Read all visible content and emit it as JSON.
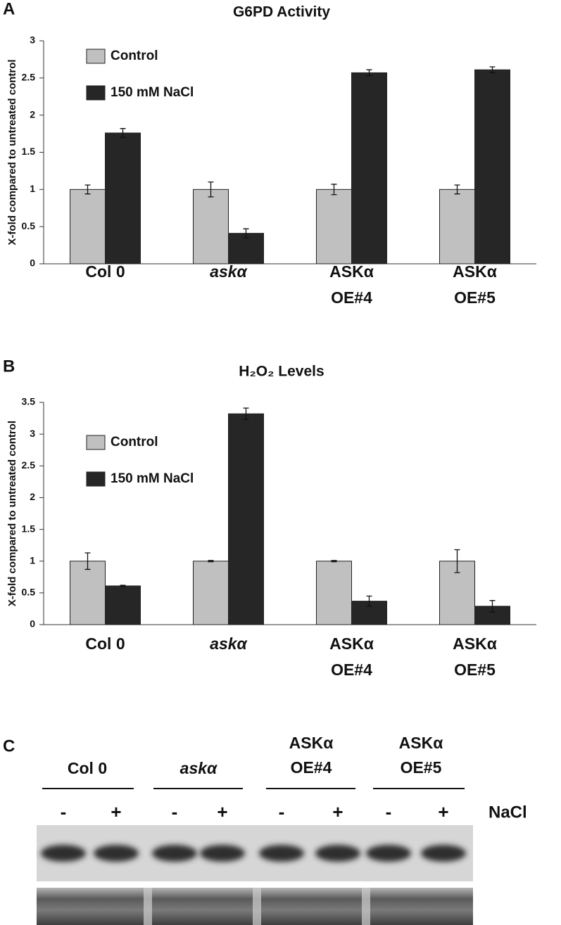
{
  "chart_data": [
    {
      "type": "bar",
      "panel_label": "A",
      "title": "G6PD Activity",
      "ylabel": "X-fold compared to untreated control",
      "categories": [
        "Col 0",
        "askα",
        "ASKα\nOE#4",
        "ASKα\nOE#5"
      ],
      "series": [
        {
          "name": "Control",
          "color": "#c0c0c0",
          "values": [
            1,
            1,
            1,
            1
          ],
          "errors": [
            0.06,
            0.1,
            0.07,
            0.06
          ]
        },
        {
          "name": "150 mM NaCl",
          "color": "#262626",
          "values": [
            1.76,
            0.41,
            2.57,
            2.61
          ],
          "errors": [
            0.06,
            0.06,
            0.04,
            0.04
          ]
        }
      ],
      "ylim": [
        0,
        3
      ],
      "yticks": [
        0,
        0.5,
        1,
        1.5,
        2,
        2.5,
        3
      ],
      "grid": false,
      "legend": "upper-left"
    },
    {
      "type": "bar",
      "panel_label": "B",
      "title": "H₂O₂ Levels",
      "ylabel": "X-fold compared to untreated control",
      "categories": [
        "Col 0",
        "askα",
        "ASKα\nOE#4",
        "ASKα\nOE#5"
      ],
      "series": [
        {
          "name": "Control",
          "color": "#c0c0c0",
          "values": [
            1,
            1,
            1,
            1
          ],
          "errors": [
            0.13,
            0.01,
            0.01,
            0.18
          ]
        },
        {
          "name": "150 mM NaCl",
          "color": "#262626",
          "values": [
            0.61,
            3.32,
            0.37,
            0.29
          ],
          "errors": [
            0.01,
            0.09,
            0.08,
            0.09
          ]
        }
      ],
      "ylim": [
        0,
        3.5
      ],
      "yticks": [
        0,
        0.5,
        1,
        1.5,
        2,
        2.5,
        3,
        3.5
      ],
      "grid": false,
      "legend": "upper-left"
    }
  ],
  "panel_c": {
    "panel_label": "C",
    "groups": [
      "Col 0",
      "askα",
      "ASKα\nOE#4",
      "ASKα\nOE#5"
    ],
    "treatments": [
      "-",
      "+",
      "-",
      "+",
      "-",
      "+",
      "-",
      "+"
    ],
    "treatment_label": "NaCl"
  }
}
